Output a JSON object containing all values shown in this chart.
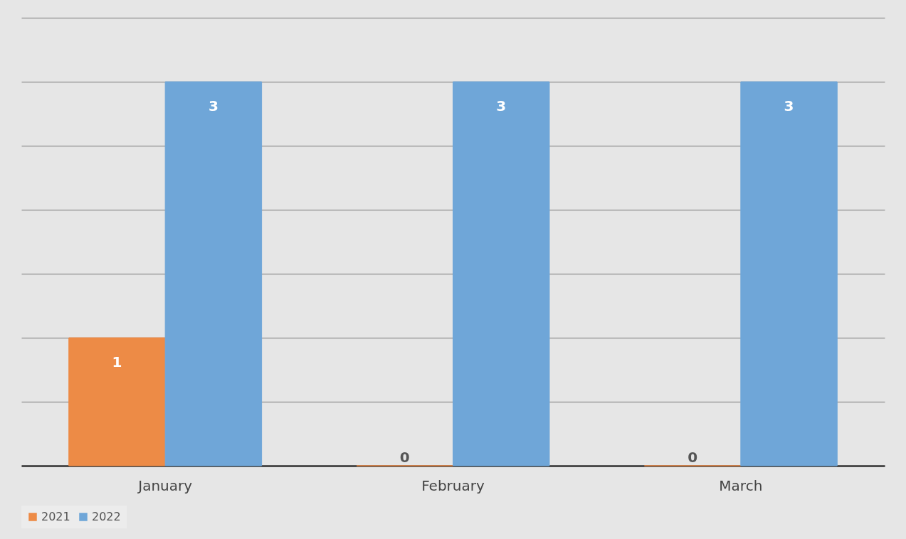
{
  "chart_data": {
    "type": "bar",
    "categories": [
      "January",
      "February",
      "March"
    ],
    "series": [
      {
        "name": "2021",
        "color": "#ed8b46",
        "values": [
          1,
          0,
          0
        ]
      },
      {
        "name": "2022",
        "color": "#6fa6d8",
        "values": [
          3,
          3,
          3
        ]
      }
    ],
    "ylim": [
      0,
      3.5
    ],
    "yticks": [
      {
        "value": 0,
        "label": null
      },
      {
        "value": 0.5,
        "label": null
      },
      {
        "value": 1,
        "label": null
      },
      {
        "value": 1.5,
        "label": null
      },
      {
        "value": 2,
        "label": null
      },
      {
        "value": 2.5,
        "label": null
      },
      {
        "value": 3,
        "label": null
      },
      {
        "value": 3.5,
        "label": null
      }
    ],
    "tick_labels": "x",
    "grid": "y",
    "legend": "bottom",
    "data_labels": true
  }
}
